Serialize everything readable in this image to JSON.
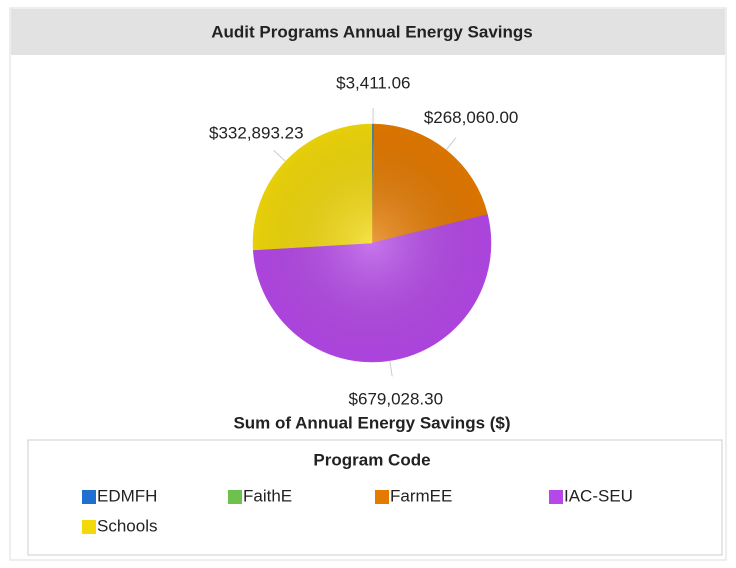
{
  "chart_data": {
    "type": "pie",
    "title": "Audit Programs Annual Energy Savings",
    "subtitle": "Sum of Annual Energy Savings ($)",
    "legend_title": "Program Code",
    "categories": [
      "EDMFH",
      "FaithE",
      "FarmEE",
      "IAC-SEU",
      "Schools"
    ],
    "values": [
      3411.06,
      0,
      268060.0,
      679028.3,
      332893.23
    ],
    "value_labels": [
      "$3,411.06",
      null,
      "$268,060.00",
      "$679,028.30",
      "$332,893.23"
    ],
    "colors": [
      "#1f6fd0",
      "#6cc24a",
      "#e57a00",
      "#b548e8",
      "#f2d90a"
    ],
    "legend": "bottom"
  }
}
